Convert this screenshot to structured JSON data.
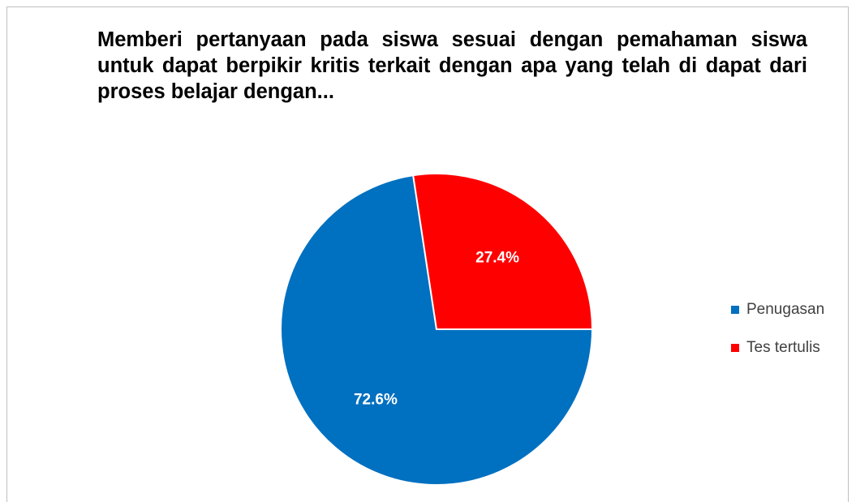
{
  "chart_data": {
    "type": "pie",
    "title": "Memberi pertanyaan pada siswa sesuai dengan pemahaman siswa untuk dapat berpikir kritis terkait dengan apa yang telah di dapat dari proses belajar dengan...",
    "categories": [
      "Penugasan",
      "Tes tertulis"
    ],
    "values": [
      72.6,
      27.4
    ],
    "value_labels": [
      "72.6%",
      "27.4%"
    ],
    "colors": [
      "#0070c0",
      "#ff0000"
    ],
    "legend": "right"
  }
}
